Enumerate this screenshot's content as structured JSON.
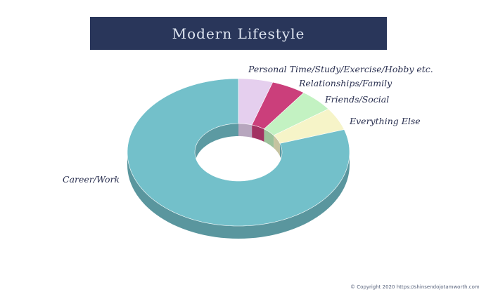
{
  "chart_data": {
    "type": "pie",
    "title": "Modern Lifestyle",
    "categories": [
      "Career/Work",
      "Personal Time/Study/Exercise/Hobby etc.",
      "Relationships/Family",
      "Friends/Social",
      "Everything Else"
    ],
    "values": [
      80,
      5,
      5,
      5,
      5
    ],
    "colors": [
      "#73c0ca",
      "#e5cfee",
      "#cb3f7b",
      "#c3f2c2",
      "#f6f4c8"
    ],
    "style": "3d-doughnut"
  },
  "footer": {
    "copyright": "© Copyright 2020 https://shinsendojotamworth.com/"
  }
}
